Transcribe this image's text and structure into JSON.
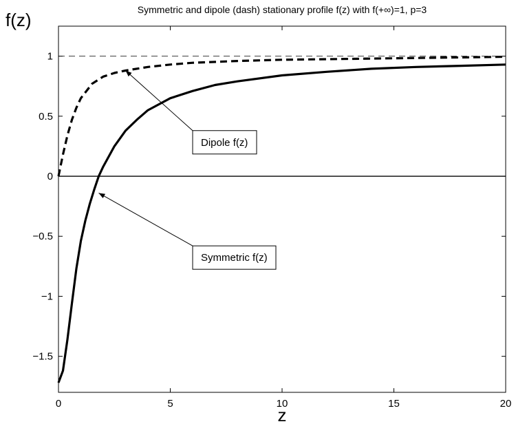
{
  "chart_data": {
    "type": "line",
    "title": "Symmetric and dipole (dash) stationary profile f(z) with f(+∞)=1, p=3",
    "xlabel": "z",
    "ylabel": "f(z)",
    "xlim": [
      0,
      20
    ],
    "ylim": [
      -1.8,
      1.25
    ],
    "grid": false,
    "x_ticks": [
      0,
      5,
      10,
      15,
      20
    ],
    "x_tick_labels": [
      "0",
      "5",
      "10",
      "15",
      "20"
    ],
    "y_ticks": [
      1,
      0.5,
      0,
      -0.5,
      -1,
      -1.5
    ],
    "y_tick_labels": [
      "1",
      "0.5",
      "0",
      "−0.5",
      "−1",
      "−1.5"
    ],
    "reference_lines": [
      {
        "y": 1,
        "style": "thin-dashed"
      },
      {
        "y": 0,
        "style": "solid"
      }
    ],
    "series": [
      {
        "style": "solid",
        "x": [
          0,
          0.2,
          0.4,
          0.6,
          0.8,
          1.0,
          1.2,
          1.4,
          1.6,
          1.8,
          2.0,
          2.5,
          3.0,
          3.5,
          4.0,
          5.0,
          6.0,
          7.0,
          8.0,
          10.0,
          12.0,
          14.0,
          16.0,
          18.0,
          20.0
        ],
        "y": [
          -1.72,
          -1.62,
          -1.36,
          -1.06,
          -0.77,
          -0.54,
          -0.37,
          -0.23,
          -0.11,
          0.0,
          0.08,
          0.25,
          0.38,
          0.47,
          0.55,
          0.65,
          0.71,
          0.76,
          0.79,
          0.84,
          0.87,
          0.895,
          0.91,
          0.92,
          0.93
        ]
      },
      {
        "style": "dashed",
        "x": [
          0,
          0.2,
          0.4,
          0.6,
          0.8,
          1.0,
          1.5,
          2.0,
          2.5,
          3.0,
          4.0,
          5.0,
          6.0,
          8.0,
          10.0,
          12.0,
          14.0,
          16.0,
          18.0,
          20.0
        ],
        "y": [
          0.0,
          0.18,
          0.34,
          0.47,
          0.57,
          0.65,
          0.77,
          0.83,
          0.86,
          0.88,
          0.91,
          0.93,
          0.945,
          0.96,
          0.97,
          0.975,
          0.98,
          0.985,
          0.99,
          0.995
        ]
      }
    ],
    "annotations": [
      {
        "text": "Dipole f(z)",
        "box_at": [
          6,
          0.38
        ],
        "arrow_to": [
          3,
          0.88
        ]
      },
      {
        "text": "Symmetric f(z)",
        "box_at": [
          6,
          -0.58
        ],
        "arrow_to": [
          1.8,
          -0.14
        ]
      }
    ]
  }
}
